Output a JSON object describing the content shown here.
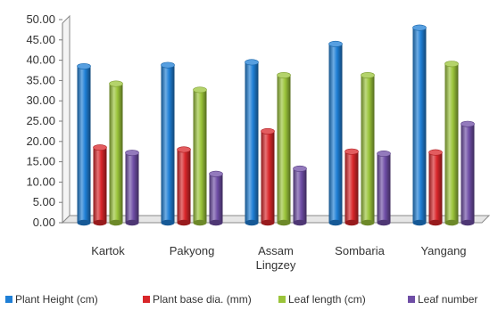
{
  "chart_data": {
    "type": "bar",
    "categories": [
      [
        "Kartok"
      ],
      [
        "Pakyong"
      ],
      [
        "Assam",
        "Lingzey"
      ],
      [
        "Sombaria"
      ],
      [
        "Yangang"
      ]
    ],
    "series": [
      {
        "name": "Plant Height (cm)",
        "values": [
          38.5,
          38.8,
          39.5,
          44.0,
          48.0
        ]
      },
      {
        "name": "Plant base dia. (mm)",
        "values": [
          18.5,
          18.0,
          22.5,
          17.5,
          17.3
        ]
      },
      {
        "name": "Leaf length (cm)",
        "values": [
          34.2,
          32.7,
          36.3,
          36.3,
          39.1
        ]
      },
      {
        "name": "Leaf number",
        "values": [
          17.2,
          12.0,
          13.3,
          17.0,
          24.3
        ]
      }
    ],
    "ylim": [
      0,
      50
    ],
    "yticks": [
      "0.00",
      "5.00",
      "10.00",
      "15.00",
      "20.00",
      "25.00",
      "30.00",
      "35.00",
      "40.00",
      "45.00",
      "50.00"
    ],
    "grid": false,
    "legend_position": "bottom",
    "colors": [
      "#1f7fd6",
      "#d9262a",
      "#9bc43a",
      "#6f4ea6"
    ]
  }
}
